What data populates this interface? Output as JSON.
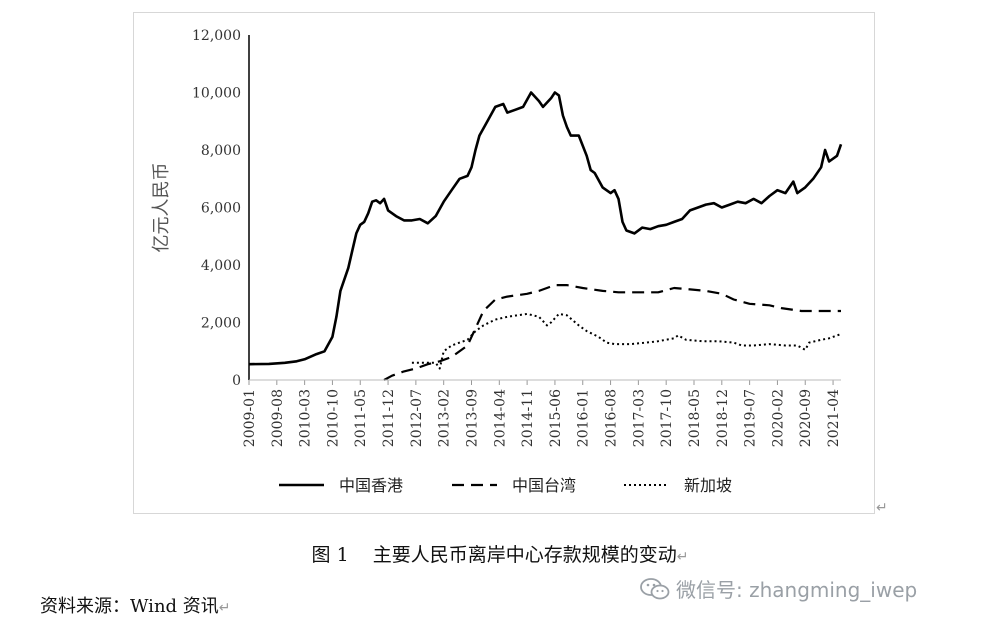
{
  "caption": {
    "number": "图 1",
    "text": "主要人民币离岸中心存款规模的变动",
    "mark": "↵"
  },
  "source": {
    "label": "资料来源：",
    "value": "Wind 资讯",
    "mark": "↵"
  },
  "watermark": {
    "icon": "wechat-icon",
    "text": "微信号: zhangming_iwep",
    "color": "#9aa0a6"
  },
  "frame_mark": "↵",
  "chart_data": {
    "type": "line",
    "title": "",
    "ylabel": "亿元人民币",
    "xlabel": "",
    "ylim": [
      0,
      12000
    ],
    "yticks": [
      0,
      2000,
      4000,
      6000,
      8000,
      10000,
      12000
    ],
    "ytick_labels": [
      "0",
      "2,000",
      "4,000",
      "6,000",
      "8,000",
      "10,000",
      "12,000"
    ],
    "xlim": [
      "2009-01",
      "2021-06"
    ],
    "xtick_labels": [
      "2009-01",
      "2009-08",
      "2010-03",
      "2010-10",
      "2011-05",
      "2011-12",
      "2012-07",
      "2013-02",
      "2013-09",
      "2014-04",
      "2014-11",
      "2015-06",
      "2016-01",
      "2016-08",
      "2017-03",
      "2017-10",
      "2018-05",
      "2018-12",
      "2019-07",
      "2020-02",
      "2020-09",
      "2021-04"
    ],
    "grid": false,
    "legend": "bottom",
    "series": [
      {
        "name": "中国香港",
        "style": "solid",
        "color": "#000000",
        "points": [
          [
            "2009-01",
            550
          ],
          [
            "2009-06",
            560
          ],
          [
            "2009-10",
            600
          ],
          [
            "2010-01",
            650
          ],
          [
            "2010-03",
            720
          ],
          [
            "2010-06",
            900
          ],
          [
            "2010-08",
            1000
          ],
          [
            "2010-10",
            1500
          ],
          [
            "2010-11",
            2200
          ],
          [
            "2010-12",
            3100
          ],
          [
            "2011-02",
            3900
          ],
          [
            "2011-03",
            4500
          ],
          [
            "2011-04",
            5100
          ],
          [
            "2011-05",
            5400
          ],
          [
            "2011-06",
            5500
          ],
          [
            "2011-07",
            5800
          ],
          [
            "2011-08",
            6200
          ],
          [
            "2011-09",
            6250
          ],
          [
            "2011-10",
            6150
          ],
          [
            "2011-11",
            6300
          ],
          [
            "2011-12",
            5900
          ],
          [
            "2012-02",
            5700
          ],
          [
            "2012-04",
            5550
          ],
          [
            "2012-06",
            5550
          ],
          [
            "2012-08",
            5600
          ],
          [
            "2012-10",
            5450
          ],
          [
            "2012-12",
            5700
          ],
          [
            "2013-02",
            6200
          ],
          [
            "2013-04",
            6600
          ],
          [
            "2013-06",
            7000
          ],
          [
            "2013-08",
            7100
          ],
          [
            "2013-09",
            7400
          ],
          [
            "2013-10",
            8000
          ],
          [
            "2013-11",
            8500
          ],
          [
            "2014-01",
            9000
          ],
          [
            "2014-03",
            9500
          ],
          [
            "2014-05",
            9600
          ],
          [
            "2014-06",
            9300
          ],
          [
            "2014-08",
            9400
          ],
          [
            "2014-10",
            9500
          ],
          [
            "2014-12",
            10000
          ],
          [
            "2015-02",
            9700
          ],
          [
            "2015-03",
            9500
          ],
          [
            "2015-05",
            9800
          ],
          [
            "2015-06",
            10000
          ],
          [
            "2015-07",
            9900
          ],
          [
            "2015-08",
            9200
          ],
          [
            "2015-09",
            8800
          ],
          [
            "2015-10",
            8500
          ],
          [
            "2015-12",
            8500
          ],
          [
            "2016-02",
            7800
          ],
          [
            "2016-03",
            7300
          ],
          [
            "2016-04",
            7200
          ],
          [
            "2016-06",
            6700
          ],
          [
            "2016-08",
            6500
          ],
          [
            "2016-09",
            6600
          ],
          [
            "2016-10",
            6300
          ],
          [
            "2016-11",
            5500
          ],
          [
            "2016-12",
            5200
          ],
          [
            "2017-02",
            5100
          ],
          [
            "2017-04",
            5300
          ],
          [
            "2017-06",
            5250
          ],
          [
            "2017-08",
            5350
          ],
          [
            "2017-10",
            5400
          ],
          [
            "2017-12",
            5500
          ],
          [
            "2018-02",
            5600
          ],
          [
            "2018-04",
            5900
          ],
          [
            "2018-06",
            6000
          ],
          [
            "2018-08",
            6100
          ],
          [
            "2018-10",
            6150
          ],
          [
            "2018-12",
            6000
          ],
          [
            "2019-02",
            6100
          ],
          [
            "2019-04",
            6200
          ],
          [
            "2019-06",
            6150
          ],
          [
            "2019-08",
            6300
          ],
          [
            "2019-10",
            6150
          ],
          [
            "2019-12",
            6400
          ],
          [
            "2020-02",
            6600
          ],
          [
            "2020-04",
            6500
          ],
          [
            "2020-06",
            6900
          ],
          [
            "2020-07",
            6500
          ],
          [
            "2020-09",
            6700
          ],
          [
            "2020-11",
            7000
          ],
          [
            "2021-01",
            7400
          ],
          [
            "2021-02",
            8000
          ],
          [
            "2021-03",
            7600
          ],
          [
            "2021-05",
            7800
          ],
          [
            "2021-06",
            8200
          ]
        ]
      },
      {
        "name": "中国台湾",
        "style": "dashed",
        "color": "#000000",
        "points": [
          [
            "2011-11",
            0
          ],
          [
            "2012-01",
            150
          ],
          [
            "2012-04",
            300
          ],
          [
            "2012-07",
            400
          ],
          [
            "2012-10",
            550
          ],
          [
            "2013-01",
            650
          ],
          [
            "2013-04",
            800
          ],
          [
            "2013-08",
            1200
          ],
          [
            "2013-10",
            1800
          ],
          [
            "2013-12",
            2400
          ],
          [
            "2014-03",
            2800
          ],
          [
            "2014-06",
            2900
          ],
          [
            "2014-11",
            3000
          ],
          [
            "2015-02",
            3100
          ],
          [
            "2015-06",
            3300
          ],
          [
            "2015-09",
            3300
          ],
          [
            "2016-01",
            3200
          ],
          [
            "2016-06",
            3100
          ],
          [
            "2016-10",
            3050
          ],
          [
            "2017-03",
            3050
          ],
          [
            "2017-08",
            3050
          ],
          [
            "2017-12",
            3200
          ],
          [
            "2018-04",
            3150
          ],
          [
            "2018-08",
            3100
          ],
          [
            "2018-12",
            3000
          ],
          [
            "2019-03",
            2800
          ],
          [
            "2019-07",
            2650
          ],
          [
            "2019-12",
            2600
          ],
          [
            "2020-03",
            2500
          ],
          [
            "2020-08",
            2400
          ],
          [
            "2021-01",
            2400
          ],
          [
            "2021-06",
            2400
          ]
        ]
      },
      {
        "name": "新加坡",
        "style": "dotted",
        "color": "#000000",
        "points": [
          [
            "2012-06",
            600
          ],
          [
            "2012-09",
            600
          ],
          [
            "2012-12",
            600
          ],
          [
            "2013-01",
            400
          ],
          [
            "2013-02",
            1000
          ],
          [
            "2013-04",
            1200
          ],
          [
            "2013-06",
            1300
          ],
          [
            "2013-08",
            1400
          ],
          [
            "2013-10",
            1700
          ],
          [
            "2013-12",
            1900
          ],
          [
            "2014-03",
            2100
          ],
          [
            "2014-06",
            2200
          ],
          [
            "2014-11",
            2300
          ],
          [
            "2015-02",
            2200
          ],
          [
            "2015-03",
            2050
          ],
          [
            "2015-04",
            1900
          ],
          [
            "2015-05",
            2000
          ],
          [
            "2015-07",
            2300
          ],
          [
            "2015-09",
            2250
          ],
          [
            "2015-12",
            1900
          ],
          [
            "2016-02",
            1700
          ],
          [
            "2016-05",
            1500
          ],
          [
            "2016-07",
            1300
          ],
          [
            "2016-09",
            1250
          ],
          [
            "2017-01",
            1250
          ],
          [
            "2017-05",
            1300
          ],
          [
            "2017-08",
            1350
          ],
          [
            "2017-12",
            1450
          ],
          [
            "2018-01",
            1550
          ],
          [
            "2018-03",
            1400
          ],
          [
            "2018-07",
            1350
          ],
          [
            "2018-11",
            1350
          ],
          [
            "2019-03",
            1300
          ],
          [
            "2019-05",
            1200
          ],
          [
            "2019-08",
            1200
          ],
          [
            "2019-12",
            1250
          ],
          [
            "2020-04",
            1200
          ],
          [
            "2020-07",
            1200
          ],
          [
            "2020-09",
            1050
          ],
          [
            "2020-10",
            1300
          ],
          [
            "2021-01",
            1400
          ],
          [
            "2021-03",
            1450
          ],
          [
            "2021-06",
            1600
          ]
        ]
      }
    ]
  }
}
